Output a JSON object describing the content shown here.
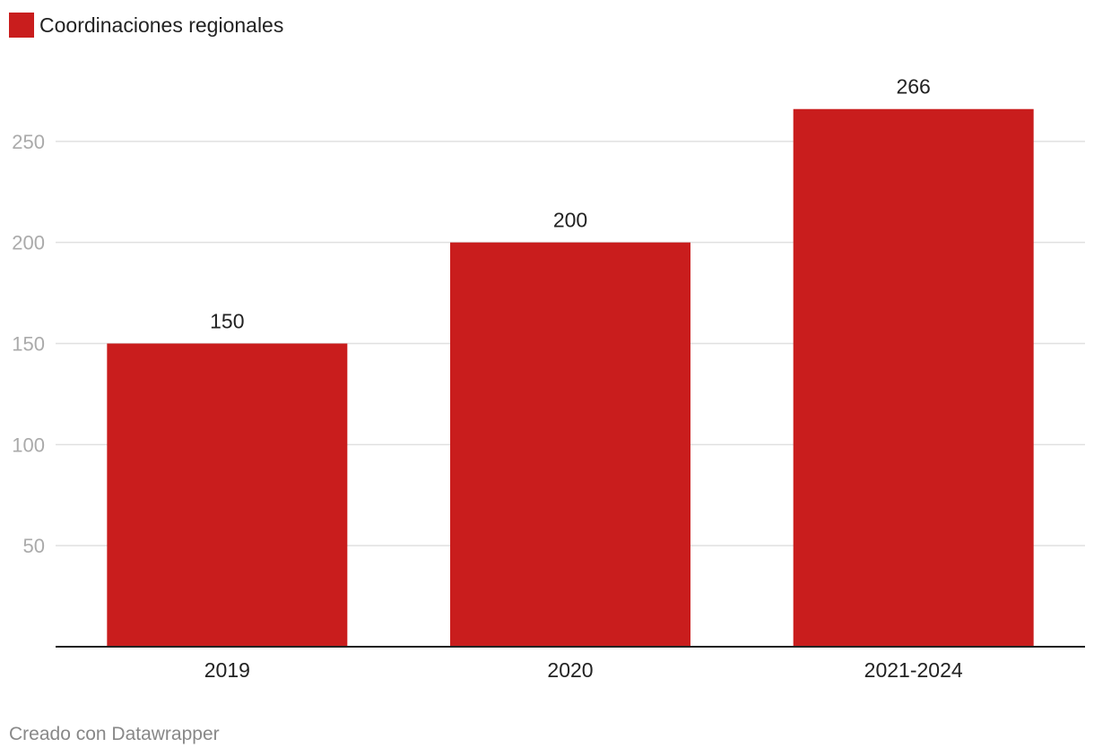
{
  "legend": {
    "label": "Coordinaciones regionales"
  },
  "colors": {
    "bar": "#c91d1d",
    "grid": "#e0e0e0",
    "axis": "#222222",
    "tick_label": "#aaaaaa",
    "text": "#222222",
    "footer": "#888888"
  },
  "footer": {
    "credit": "Creado con Datawrapper"
  },
  "chart_data": {
    "type": "bar",
    "categories": [
      "2019",
      "2020",
      "2021-2024"
    ],
    "series": [
      {
        "name": "Coordinaciones regionales",
        "values": [
          150,
          200,
          266
        ]
      }
    ],
    "data_labels": [
      "150",
      "200",
      "266"
    ],
    "y_ticks": [
      50,
      100,
      150,
      200,
      250
    ],
    "ylim": [
      0,
      280
    ],
    "grid": true,
    "legend_position": "top-left",
    "title": "",
    "xlabel": "",
    "ylabel": ""
  }
}
